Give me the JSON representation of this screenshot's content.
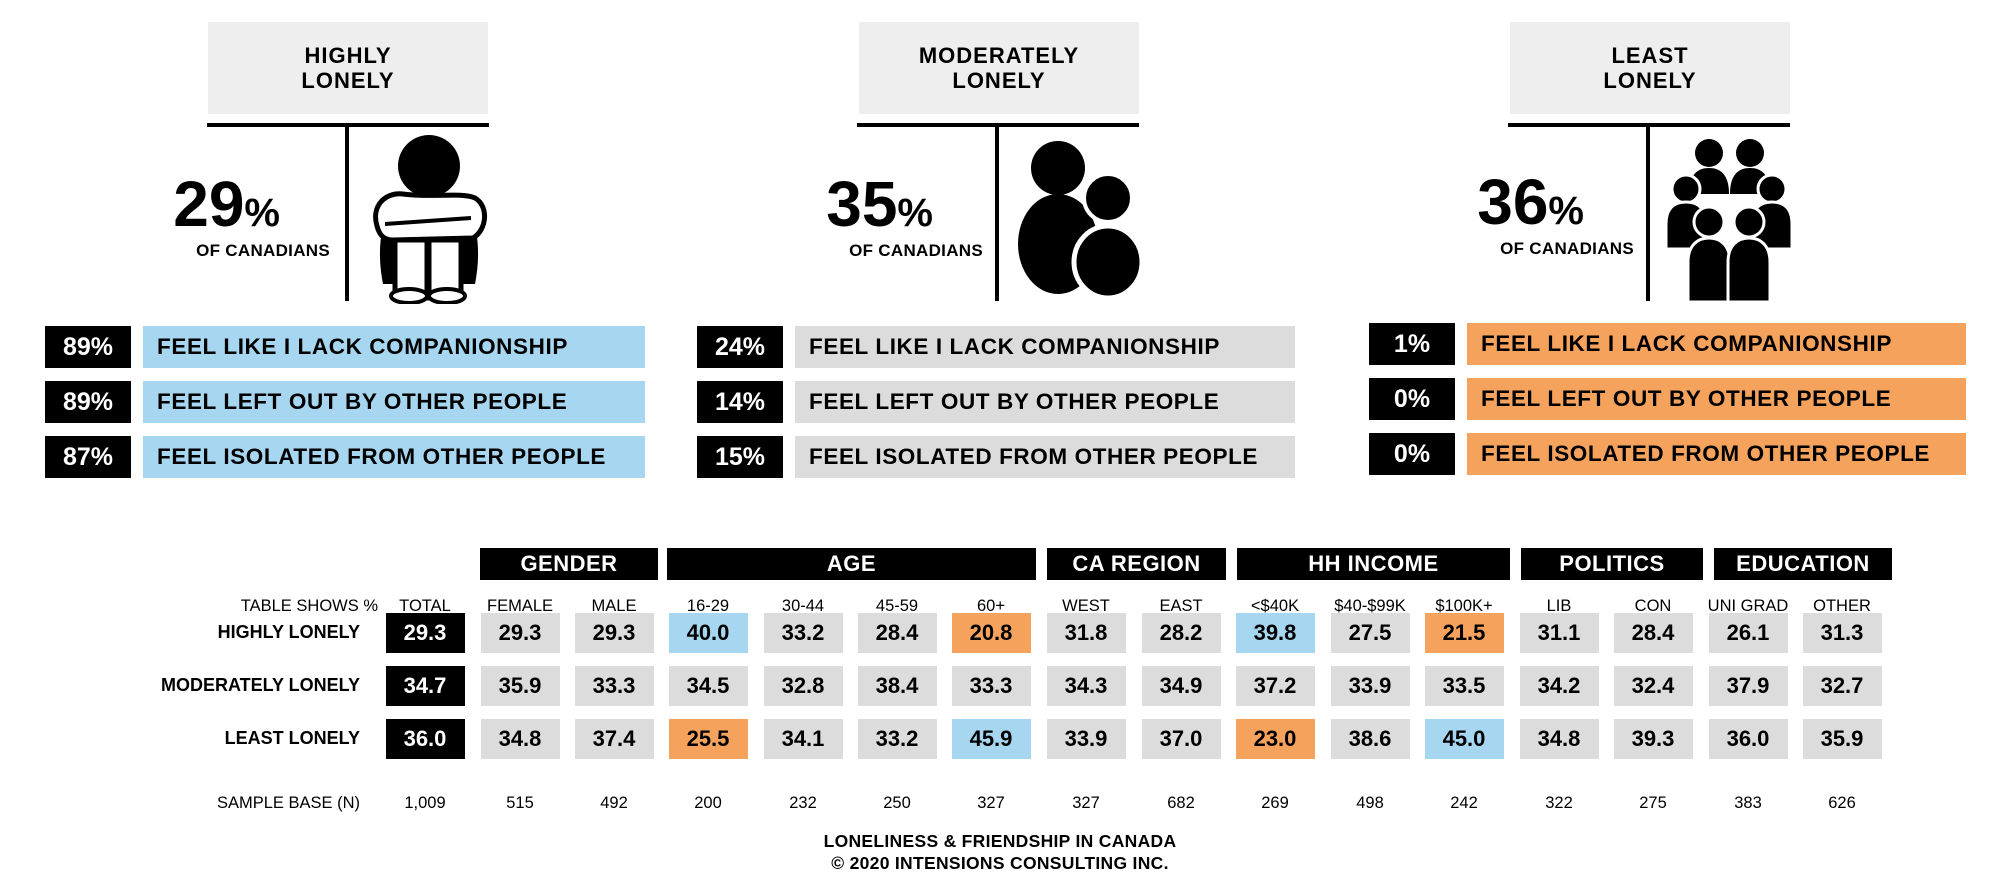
{
  "colors": {
    "black": "#000000",
    "grey": "#dcdcdc",
    "title_bg": "#eeeeee",
    "blue": "#a6d6f0",
    "orange": "#f5a25d"
  },
  "segments": [
    {
      "title_line1": "HIGHLY",
      "title_line2": "LONELY",
      "stat": "29",
      "pct_sign": "%",
      "stat_sub": "OF CANADIANS",
      "icon": "person-hugging-knees-icon",
      "label_color": "blue",
      "rows": [
        {
          "pct": "89%",
          "label": "FEEL LIKE I LACK COMPANIONSHIP"
        },
        {
          "pct": "89%",
          "label": "FEEL LEFT OUT BY OTHER PEOPLE"
        },
        {
          "pct": "87%",
          "label": "FEEL ISOLATED FROM OTHER PEOPLE"
        }
      ]
    },
    {
      "title_line1": "MODERATELY",
      "title_line2": "LONELY",
      "stat": "35",
      "pct_sign": "%",
      "stat_sub": "OF CANADIANS",
      "icon": "two-people-icon",
      "label_color": "grey",
      "rows": [
        {
          "pct": "24%",
          "label": "FEEL LIKE I LACK COMPANIONSHIP"
        },
        {
          "pct": "14%",
          "label": "FEEL LEFT OUT BY OTHER PEOPLE"
        },
        {
          "pct": "15%",
          "label": "FEEL ISOLATED FROM OTHER PEOPLE"
        }
      ]
    },
    {
      "title_line1": "LEAST",
      "title_line2": "LONELY",
      "stat": "36",
      "pct_sign": "%",
      "stat_sub": "OF CANADIANS",
      "icon": "group-of-people-icon",
      "label_color": "orange",
      "rows": [
        {
          "pct": "1%",
          "label": "FEEL LIKE I LACK COMPANIONSHIP"
        },
        {
          "pct": "0%",
          "label": "FEEL LEFT OUT BY OTHER PEOPLE"
        },
        {
          "pct": "0%",
          "label": "FEEL ISOLATED FROM OTHER PEOPLE"
        }
      ]
    }
  ],
  "chart_data": {
    "type": "table",
    "corner_label": "TABLE SHOWS %",
    "groups": [
      {
        "name": "GENDER",
        "columns": [
          "FEMALE",
          "MALE"
        ]
      },
      {
        "name": "AGE",
        "columns": [
          "16-29",
          "30-44",
          "45-59",
          "60+"
        ]
      },
      {
        "name": "CA REGION",
        "columns": [
          "WEST",
          "EAST"
        ]
      },
      {
        "name": "HH INCOME",
        "columns": [
          "<$40K",
          "$40-$99K",
          "$100K+"
        ]
      },
      {
        "name": "POLITICS",
        "columns": [
          "LIB",
          "CON"
        ]
      },
      {
        "name": "EDUCATION",
        "columns": [
          "UNI GRAD",
          "OTHER"
        ]
      }
    ],
    "columns": [
      "TOTAL",
      "FEMALE",
      "MALE",
      "16-29",
      "30-44",
      "45-59",
      "60+",
      "WEST",
      "EAST",
      "<$40K",
      "$40-$99K",
      "$100K+",
      "LIB",
      "CON",
      "UNI GRAD",
      "OTHER"
    ],
    "rows": [
      {
        "label": "HIGHLY LONELY",
        "values": [
          "29.3",
          "29.3",
          "29.3",
          "40.0",
          "33.2",
          "28.4",
          "20.8",
          "31.8",
          "28.2",
          "39.8",
          "27.5",
          "21.5",
          "31.1",
          "28.4",
          "26.1",
          "31.3"
        ],
        "highlights": [
          "total",
          "grey",
          "grey",
          "blue",
          "grey",
          "grey",
          "orange",
          "grey",
          "grey",
          "blue",
          "grey",
          "orange",
          "grey",
          "grey",
          "grey",
          "grey"
        ]
      },
      {
        "label": "MODERATELY LONELY",
        "values": [
          "34.7",
          "35.9",
          "33.3",
          "34.5",
          "32.8",
          "38.4",
          "33.3",
          "34.3",
          "34.9",
          "37.2",
          "33.9",
          "33.5",
          "34.2",
          "32.4",
          "37.9",
          "32.7"
        ],
        "highlights": [
          "total",
          "grey",
          "grey",
          "grey",
          "grey",
          "grey",
          "grey",
          "grey",
          "grey",
          "grey",
          "grey",
          "grey",
          "grey",
          "grey",
          "grey",
          "grey"
        ]
      },
      {
        "label": "LEAST LONELY",
        "values": [
          "36.0",
          "34.8",
          "37.4",
          "25.5",
          "34.1",
          "33.2",
          "45.9",
          "33.9",
          "37.0",
          "23.0",
          "38.6",
          "45.0",
          "34.8",
          "39.3",
          "36.0",
          "35.9"
        ],
        "highlights": [
          "total",
          "grey",
          "grey",
          "orange",
          "grey",
          "grey",
          "blue",
          "grey",
          "grey",
          "orange",
          "grey",
          "blue",
          "grey",
          "grey",
          "grey",
          "grey"
        ]
      }
    ],
    "sample_base_label": "SAMPLE BASE (N)",
    "sample_base": [
      "1,009",
      "515",
      "492",
      "200",
      "232",
      "250",
      "327",
      "327",
      "682",
      "269",
      "498",
      "242",
      "322",
      "275",
      "383",
      "626"
    ]
  },
  "footer": {
    "line1": "LONELINESS & FRIENDSHIP IN CANADA",
    "line2": "© 2020 INTENSIONS CONSULTING INC."
  }
}
